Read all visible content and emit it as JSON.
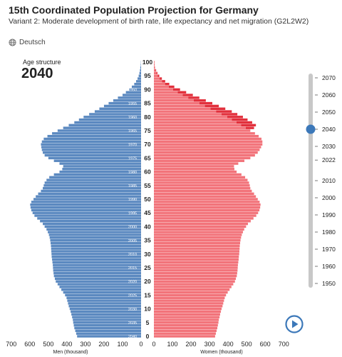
{
  "header": {
    "title": "15th Coordinated Population Projection for Germany",
    "subtitle": "Variant 2: Moderate development of birth rate, life expectancy and net migration (G2L2W2)",
    "language_link": "Deutsch",
    "language_icon": "globe-icon"
  },
  "panel": {
    "label": "Age structure",
    "year": "2040"
  },
  "colors": {
    "men": "#5b89c0",
    "men_excess": "#3f6fae",
    "women": "#f2737a",
    "women_excess": "#e2303c",
    "slider_track": "#c8c8c8",
    "slider_knob": "#3c78b9",
    "play": "#3c78b9"
  },
  "slider": {
    "years": [
      "2070",
      "2060",
      "2050",
      "2040",
      "2030",
      "2022",
      "2010",
      "2000",
      "1990",
      "1980",
      "1970",
      "1960",
      "1950"
    ],
    "selected": "2040",
    "play_icon": "play-icon"
  },
  "chart_data": {
    "type": "population-pyramid",
    "bar_value_unit": "thousand",
    "x_axis_left_label": "Men (thousand)",
    "x_axis_right_label": "Women (thousand)",
    "x_ticks_left": [
      "700",
      "600",
      "500",
      "400",
      "300",
      "200",
      "100",
      "0"
    ],
    "x_ticks_right": [
      "0",
      "100",
      "200",
      "300",
      "400",
      "500",
      "600",
      "700"
    ],
    "x_max": 700,
    "age_ticks": [
      "100",
      "95",
      "90",
      "85",
      "80",
      "75",
      "70",
      "65",
      "60",
      "55",
      "50",
      "45",
      "40",
      "35",
      "30",
      "25",
      "20",
      "15",
      "10",
      "5",
      "0"
    ],
    "birth_year_labels": [
      "1950",
      "1955",
      "1960",
      "1965",
      "1970",
      "1975",
      "1980",
      "1985",
      "1990",
      "1995",
      "2000",
      "2005",
      "2010",
      "2015",
      "2020",
      "2025",
      "2030",
      "2035",
      "2040"
    ],
    "ages": [
      0,
      1,
      2,
      3,
      4,
      5,
      6,
      7,
      8,
      9,
      10,
      11,
      12,
      13,
      14,
      15,
      16,
      17,
      18,
      19,
      20,
      21,
      22,
      23,
      24,
      25,
      26,
      27,
      28,
      29,
      30,
      31,
      32,
      33,
      34,
      35,
      36,
      37,
      38,
      39,
      40,
      41,
      42,
      43,
      44,
      45,
      46,
      47,
      48,
      49,
      50,
      51,
      52,
      53,
      54,
      55,
      56,
      57,
      58,
      59,
      60,
      61,
      62,
      63,
      64,
      65,
      66,
      67,
      68,
      69,
      70,
      71,
      72,
      73,
      74,
      75,
      76,
      77,
      78,
      79,
      80,
      81,
      82,
      83,
      84,
      85,
      86,
      87,
      88,
      89,
      90,
      91,
      92,
      93,
      94,
      95,
      96,
      97,
      98,
      99,
      100
    ],
    "men": [
      345,
      350,
      355,
      360,
      363,
      366,
      368,
      372,
      376,
      380,
      385,
      390,
      394,
      398,
      402,
      410,
      420,
      430,
      440,
      450,
      460,
      465,
      470,
      472,
      474,
      475,
      476,
      478,
      480,
      482,
      483,
      484,
      485,
      486,
      488,
      490,
      493,
      497,
      503,
      510,
      520,
      530,
      545,
      560,
      575,
      585,
      592,
      596,
      598,
      592,
      580,
      568,
      555,
      540,
      530,
      525,
      520,
      510,
      495,
      470,
      440,
      425,
      420,
      440,
      470,
      500,
      520,
      530,
      535,
      538,
      540,
      535,
      525,
      505,
      480,
      450,
      420,
      390,
      360,
      335,
      310,
      280,
      250,
      225,
      200,
      175,
      150,
      125,
      100,
      82,
      65,
      50,
      37,
      27,
      19,
      13,
      9,
      6,
      4,
      2,
      1
    ],
    "women": [
      330,
      334,
      338,
      342,
      345,
      348,
      350,
      354,
      357,
      361,
      365,
      370,
      374,
      378,
      382,
      389,
      398,
      408,
      418,
      428,
      437,
      442,
      447,
      449,
      451,
      452,
      453,
      455,
      457,
      458,
      460,
      461,
      462,
      463,
      465,
      467,
      470,
      474,
      480,
      487,
      497,
      507,
      522,
      537,
      552,
      562,
      569,
      573,
      575,
      570,
      560,
      550,
      540,
      528,
      520,
      517,
      513,
      505,
      492,
      472,
      446,
      434,
      432,
      455,
      488,
      520,
      545,
      560,
      570,
      578,
      585,
      585,
      580,
      565,
      545,
      520,
      495,
      470,
      445,
      420,
      395,
      365,
      335,
      305,
      275,
      245,
      215,
      185,
      155,
      128,
      103,
      80,
      60,
      44,
      31,
      21,
      14,
      9,
      5,
      3,
      2
    ],
    "men_excess": [
      0,
      0,
      0,
      0,
      0,
      0,
      0,
      0,
      0,
      0,
      0,
      0,
      0,
      0,
      0,
      0,
      0,
      0,
      0,
      0,
      0,
      0,
      0,
      0,
      0,
      0,
      0,
      0,
      0,
      0,
      0,
      0,
      0,
      0,
      0,
      0,
      0,
      0,
      0,
      0,
      0,
      0,
      0,
      0,
      0,
      0,
      0,
      0,
      0,
      0,
      0,
      0,
      0,
      0,
      0,
      0,
      0,
      0,
      0,
      0,
      0,
      0,
      0,
      0,
      0,
      0,
      0,
      0,
      0,
      0,
      0,
      0,
      0,
      0,
      0,
      0,
      0,
      0,
      0,
      0,
      0,
      0,
      0,
      0,
      0,
      0,
      0,
      0,
      0,
      0,
      0,
      0,
      0,
      0,
      0,
      0,
      0,
      0,
      0,
      0,
      0
    ],
    "women_excess": [
      0,
      0,
      0,
      0,
      0,
      0,
      0,
      0,
      0,
      0,
      0,
      0,
      0,
      0,
      0,
      0,
      0,
      0,
      0,
      0,
      0,
      0,
      0,
      0,
      0,
      0,
      0,
      0,
      0,
      0,
      0,
      0,
      0,
      0,
      0,
      0,
      0,
      0,
      0,
      0,
      0,
      0,
      0,
      0,
      0,
      0,
      0,
      0,
      0,
      0,
      0,
      0,
      0,
      0,
      0,
      0,
      0,
      0,
      0,
      0,
      0,
      0,
      0,
      0,
      0,
      0,
      0,
      0,
      0,
      0,
      0,
      0,
      0,
      0,
      0,
      0,
      45,
      80,
      85,
      85,
      85,
      85,
      85,
      80,
      75,
      70,
      65,
      60,
      55,
      46,
      38,
      30,
      23,
      17,
      12,
      8,
      5,
      3,
      1,
      1,
      1
    ]
  }
}
